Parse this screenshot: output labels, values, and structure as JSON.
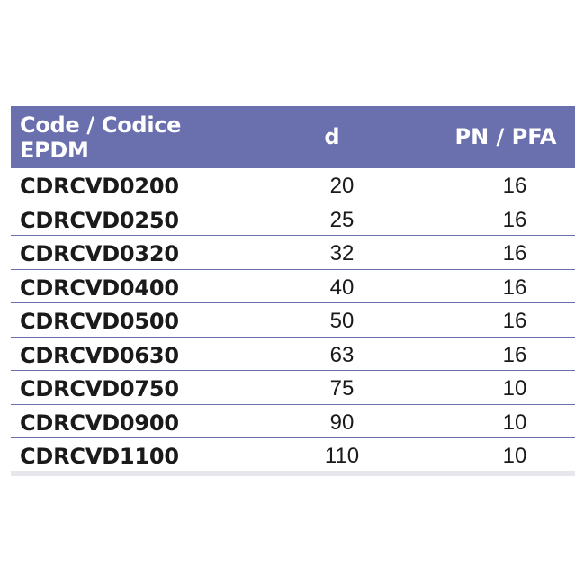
{
  "header": {
    "code_line1": "Code / Codice",
    "code_line2": "EPDM",
    "d": "d",
    "pn": "PN / PFA"
  },
  "rows": [
    {
      "code": "CDRCVD0200",
      "d": "20",
      "pn": "16"
    },
    {
      "code": "CDRCVD0250",
      "d": "25",
      "pn": "16"
    },
    {
      "code": "CDRCVD0320",
      "d": "32",
      "pn": "16"
    },
    {
      "code": "CDRCVD0400",
      "d": "40",
      "pn": "16"
    },
    {
      "code": "CDRCVD0500",
      "d": "50",
      "pn": "16"
    },
    {
      "code": "CDRCVD0630",
      "d": "63",
      "pn": "16"
    },
    {
      "code": "CDRCVD0750",
      "d": "75",
      "pn": "10"
    },
    {
      "code": "CDRCVD0900",
      "d": "90",
      "pn": "10"
    },
    {
      "code": "CDRCVD1100",
      "d": "110",
      "pn": "10"
    }
  ],
  "colors": {
    "header_bg": "#6a6fae",
    "header_text": "#ffffff",
    "row_divider": "#6a6fae"
  }
}
